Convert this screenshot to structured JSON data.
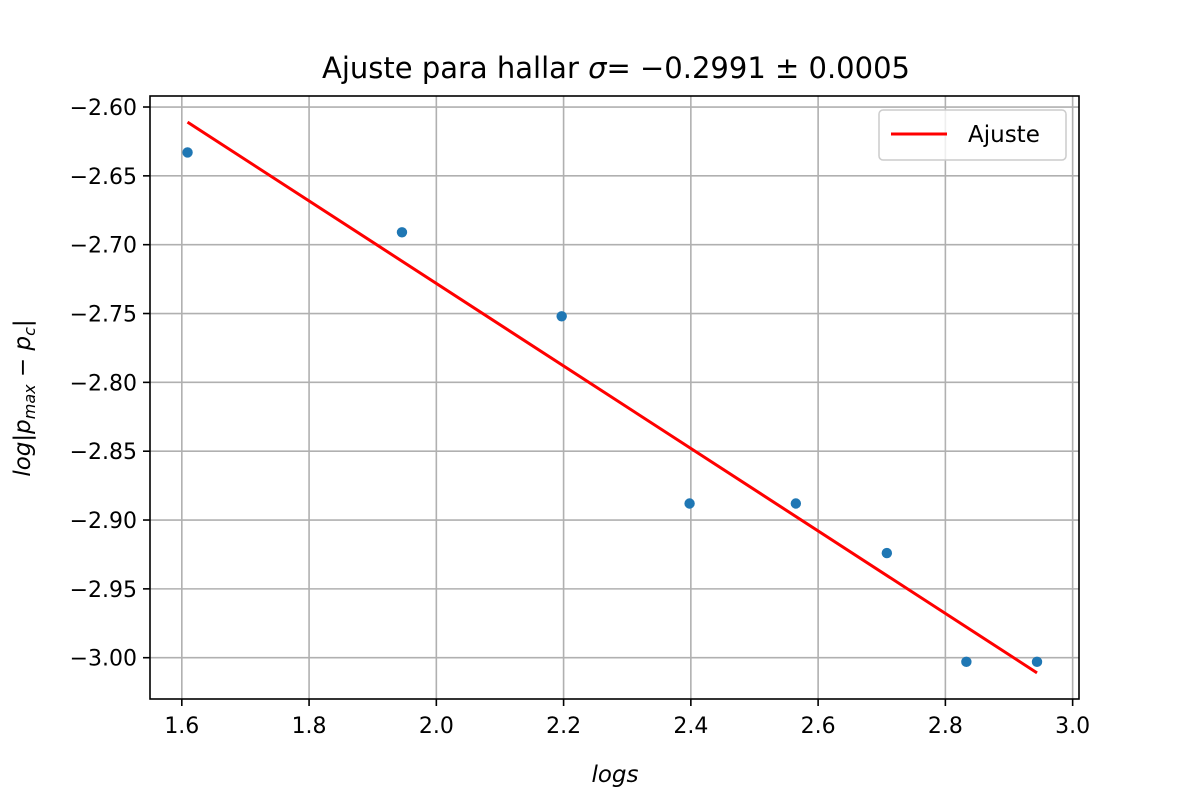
{
  "chart_data": {
    "type": "scatter",
    "title_prefix": "Ajuste para hallar ",
    "title_symbol": "σ",
    "title_value": "= −0.2991 ± 0.0005",
    "xlabel": "logs",
    "ylabel_main": "log|p",
    "ylabel_sub1": "max",
    "ylabel_mid": " − p",
    "ylabel_sub2": "c",
    "ylabel_end": "|",
    "xlim": [
      1.55,
      3.01
    ],
    "ylim": [
      -3.03,
      -2.592
    ],
    "xticks": [
      1.6,
      1.8,
      2.0,
      2.2,
      2.4,
      2.6,
      2.8,
      3.0
    ],
    "xtick_labels": [
      "1.6",
      "1.8",
      "2.0",
      "2.2",
      "2.4",
      "2.6",
      "2.8",
      "3.0"
    ],
    "yticks": [
      -2.6,
      -2.65,
      -2.7,
      -2.75,
      -2.8,
      -2.85,
      -2.9,
      -2.95,
      -3.0
    ],
    "ytick_labels": [
      "−2.60",
      "−2.65",
      "−2.70",
      "−2.75",
      "−2.80",
      "−2.85",
      "−2.90",
      "−2.95",
      "−3.00"
    ],
    "grid": true,
    "legend_position": "top-right",
    "series": [
      {
        "kind": "scatter",
        "color": "#1f77b4",
        "x": [
          1.609,
          1.946,
          2.197,
          2.398,
          2.565,
          2.708,
          2.833,
          2.944
        ],
        "y": [
          -2.633,
          -2.691,
          -2.752,
          -2.888,
          -2.888,
          -2.924,
          -3.003,
          -3.003
        ]
      },
      {
        "kind": "line",
        "name": "Ajuste",
        "color": "#ff0000",
        "x": [
          1.609,
          2.944
        ],
        "y": [
          -2.611,
          -3.011
        ]
      }
    ]
  }
}
